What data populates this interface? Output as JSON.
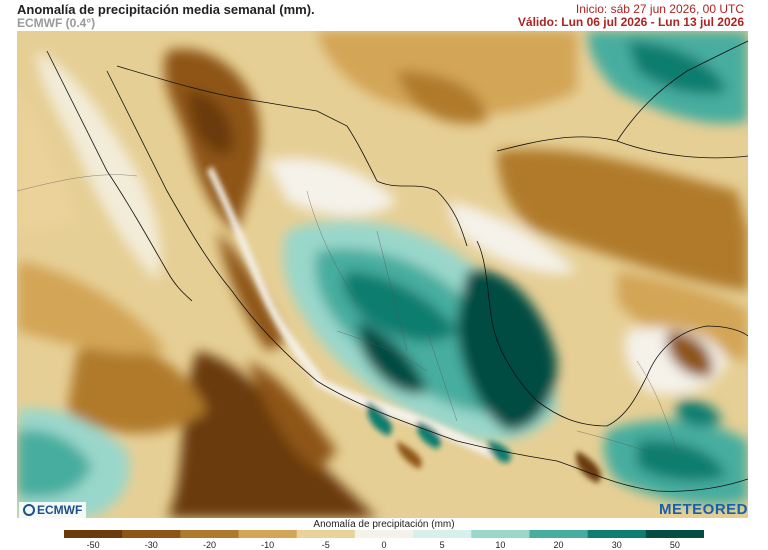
{
  "header": {
    "title": "Anomalía de precipitación media semanal (mm).",
    "subtitle": "ECMWF (0.4°)",
    "inicio": "Inicio: sáb 27 jun 2026, 00 UTC",
    "valido": "Válido: Lun 06 jul 2026 - Lun 13 jul 2026"
  },
  "logos": {
    "left": "ECMWF",
    "right": "METEORED"
  },
  "colorbar": {
    "title": "Anomalía de precipitación (mm)",
    "ticks": [
      "-50",
      "-30",
      "-20",
      "-10",
      "-5",
      "0",
      "5",
      "10",
      "20",
      "30",
      "50"
    ],
    "colors": [
      "#6b3b0c",
      "#8e5517",
      "#b07a2c",
      "#d3a557",
      "#ebd29a",
      "#f5f2ea",
      "#d8f0ec",
      "#9ad7cb",
      "#47ad9f",
      "#0f7d70",
      "#054c42"
    ]
  }
}
